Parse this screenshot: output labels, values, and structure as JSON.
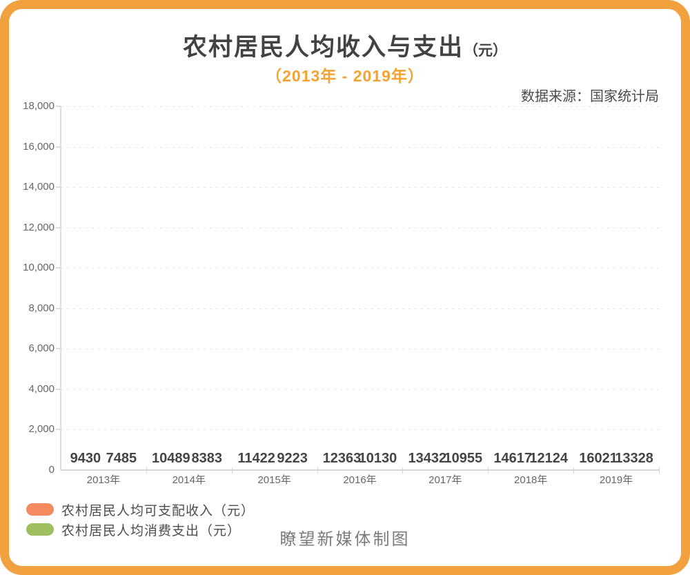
{
  "header": {
    "title_main": "农村居民人均收入与支出",
    "title_unit": "（元）",
    "subtitle": "（2013年 - 2019年）",
    "source": "数据来源：国家统计局"
  },
  "chart_data": {
    "type": "bar",
    "title": "农村居民人均收入与支出（元）",
    "subtitle": "（2013年 - 2019年）",
    "categories": [
      "2013年",
      "2014年",
      "2015年",
      "2016年",
      "2017年",
      "2018年",
      "2019年"
    ],
    "series": [
      {
        "name": "农村居民人均可支配收入（元）",
        "color": "#F58A61",
        "values": [
          9430,
          10489,
          11422,
          12363,
          13432,
          14617,
          16021
        ]
      },
      {
        "name": "农村居民人均消费支出（元）",
        "color": "#9EBF5E",
        "values": [
          7485,
          8383,
          9223,
          10130,
          10955,
          12124,
          13328
        ]
      }
    ],
    "ylim": [
      0,
      18000
    ],
    "ytick_step": 2000,
    "ytick_labels": [
      "0",
      "2,000",
      "4,000",
      "6,000",
      "8,000",
      "10,000",
      "12,000",
      "14,000",
      "16,000",
      "18,000"
    ],
    "grid": "horizontal-dashed",
    "legend_position": "bottom-left",
    "bar_render_state": "zero-height (animation start frame; only bold value labels visible just above the baseline)"
  },
  "footer": {
    "credit": "瞭望新媒体制图"
  },
  "colors": {
    "frame_border": "#F1A23E",
    "accent": "#F5A233",
    "title_text": "#424242",
    "axis_text": "#666666",
    "value_label_text": "#454545",
    "income_series": "#F58A61",
    "expenditure_series": "#9EBF5E"
  }
}
